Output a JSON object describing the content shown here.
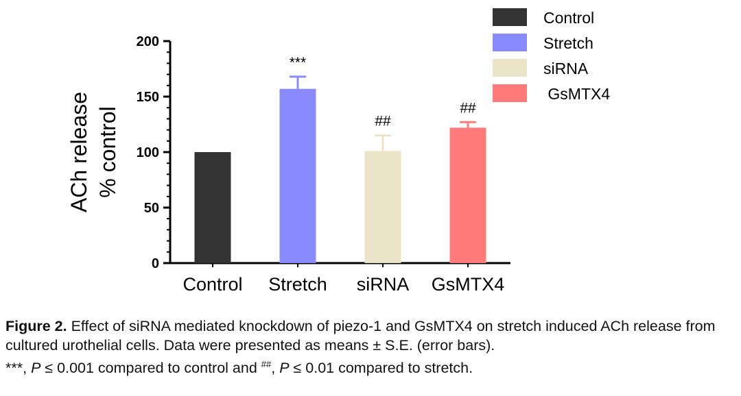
{
  "chart_data": {
    "type": "bar",
    "ylabel_line1": "ACh release",
    "ylabel_line2": "% control",
    "ylim": [
      0,
      200
    ],
    "yticks": [
      0,
      50,
      100,
      150,
      200
    ],
    "categories": [
      "Control",
      "Stretch",
      "siRNA",
      "GsMTX4"
    ],
    "values": [
      100,
      157,
      101,
      122
    ],
    "errors": [
      0,
      11,
      14,
      5
    ],
    "annotations": [
      "",
      "***",
      "##",
      "##"
    ],
    "colors": [
      "#333333",
      "#8a8aff",
      "#ebe4c8",
      "#ff7b7b"
    ],
    "legend": {
      "placement": "top-right",
      "entries": [
        "Control",
        "Stretch",
        "siRNA",
        " GsMTX4"
      ]
    }
  },
  "caption": {
    "label": "Figure 2.",
    "text1": " Effect of siRNA mediated knockdown of piezo-1 and GsMTX4 on stretch induced ACh release from cultured urothelial cells. Data were presented as means ± S.E. (error bars).",
    "text2": "***, ",
    "p1": "P",
    "text3": " ≤ 0.001 compared to control and ",
    "hash": "##",
    "text4": ", ",
    "p2": "P",
    "text5": " ≤ 0.01 compared to stretch."
  }
}
